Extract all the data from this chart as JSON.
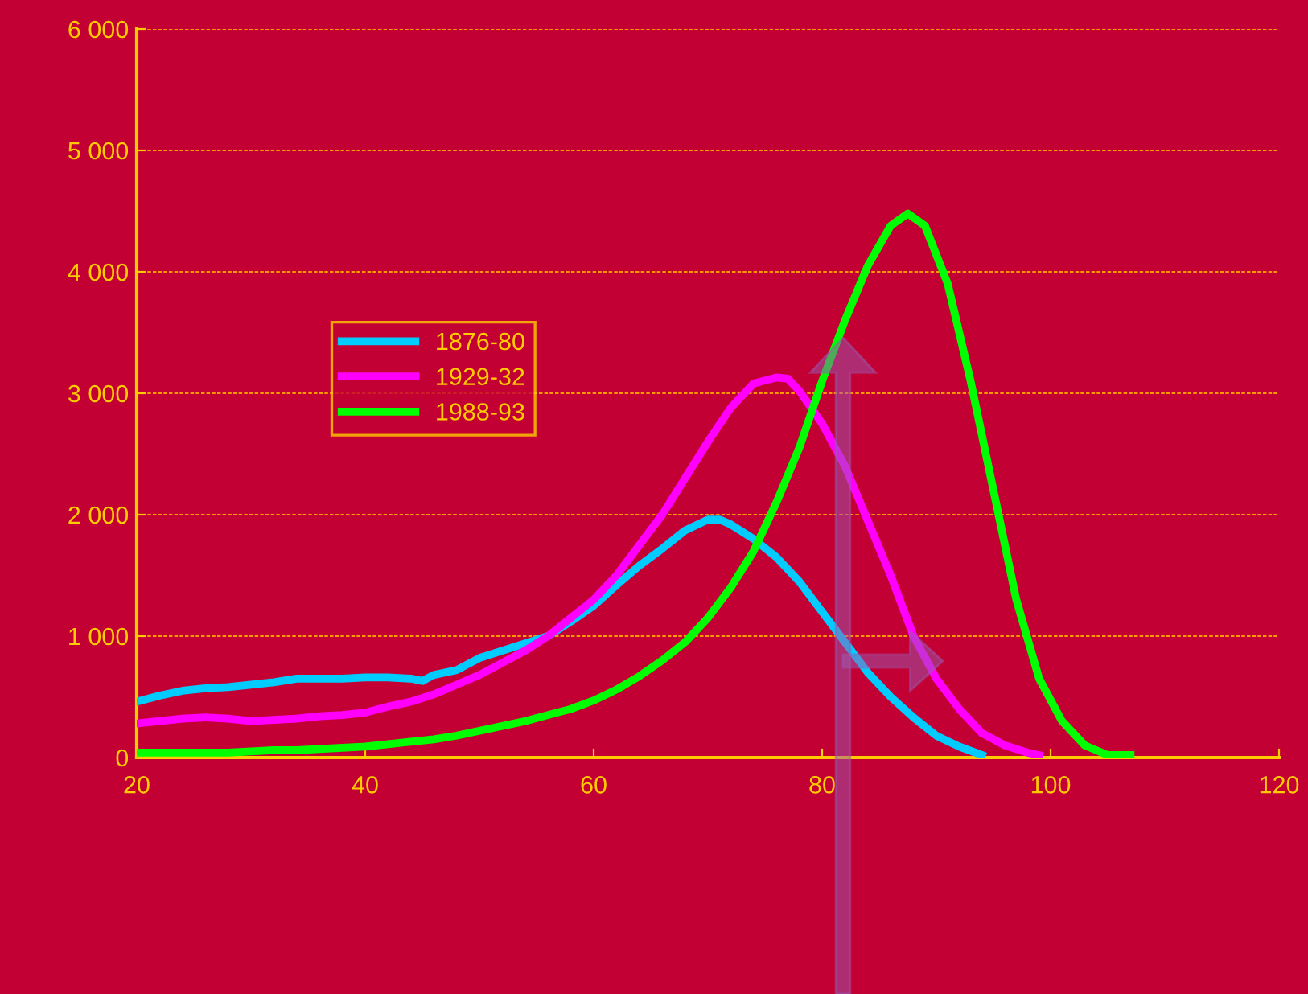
{
  "chart_data": {
    "type": "line",
    "xlim": [
      20,
      120
    ],
    "xticks": [
      20,
      40,
      60,
      80,
      100,
      120
    ],
    "ylim": [
      0,
      6000
    ],
    "yticks": [
      {
        "value": 0,
        "label": "0"
      },
      {
        "value": 1000,
        "label": "1 000"
      },
      {
        "value": 2000,
        "label": "2 000"
      },
      {
        "value": 3000,
        "label": "3 000"
      },
      {
        "value": 4000,
        "label": "4 000"
      },
      {
        "value": 5000,
        "label": "5 000"
      },
      {
        "value": 6000,
        "label": "6 000"
      }
    ],
    "grid": "y",
    "legend": "left",
    "marker": "none",
    "line_style": "solid",
    "series": [
      {
        "name": "1876-80",
        "color": "#00ccff",
        "x": [
          20,
          22,
          24,
          26,
          28,
          30,
          32,
          34,
          36,
          38,
          40,
          42,
          44,
          45,
          46,
          48,
          50,
          52,
          54,
          56,
          58,
          60,
          62,
          64,
          66,
          68,
          70,
          71,
          72,
          74,
          76,
          78,
          80,
          82,
          84,
          86,
          88,
          90,
          92,
          94
        ],
        "values": [
          460,
          510,
          550,
          570,
          580,
          600,
          620,
          650,
          650,
          650,
          660,
          660,
          650,
          630,
          680,
          720,
          820,
          880,
          940,
          1000,
          1120,
          1250,
          1420,
          1580,
          1720,
          1870,
          1960,
          1960,
          1920,
          1800,
          1650,
          1450,
          1200,
          950,
          700,
          500,
          330,
          180,
          90,
          20
        ]
      },
      {
        "name": "1929-32",
        "color": "#ff00ff",
        "x": [
          20,
          22,
          24,
          26,
          28,
          30,
          32,
          34,
          36,
          38,
          40,
          42,
          44,
          46,
          48,
          50,
          52,
          54,
          56,
          58,
          60,
          62,
          64,
          66,
          68,
          70,
          72,
          74,
          76,
          77,
          78,
          80,
          82,
          84,
          86,
          88,
          90,
          92,
          94,
          96,
          98,
          99
        ],
        "values": [
          280,
          300,
          320,
          330,
          320,
          300,
          310,
          320,
          340,
          350,
          370,
          420,
          460,
          520,
          600,
          680,
          780,
          880,
          1000,
          1150,
          1300,
          1500,
          1750,
          2000,
          2300,
          2600,
          2880,
          3080,
          3130,
          3120,
          3020,
          2750,
          2400,
          1950,
          1500,
          1000,
          650,
          400,
          200,
          100,
          40,
          20
        ]
      },
      {
        "name": "1988-93",
        "color": "#00ff00",
        "x": [
          20,
          22,
          24,
          26,
          28,
          30,
          32,
          34,
          36,
          38,
          40,
          42,
          44,
          46,
          48,
          50,
          52,
          54,
          56,
          58,
          60,
          62,
          64,
          66,
          68,
          70,
          72,
          74,
          76,
          78,
          80,
          82,
          84,
          86,
          87.5,
          89,
          91,
          93,
          95,
          97,
          99,
          101,
          103,
          105,
          107
        ],
        "values": [
          40,
          40,
          40,
          40,
          40,
          50,
          60,
          60,
          70,
          80,
          90,
          110,
          130,
          150,
          180,
          220,
          260,
          300,
          350,
          400,
          470,
          560,
          670,
          800,
          950,
          1150,
          1400,
          1700,
          2100,
          2550,
          3100,
          3600,
          4050,
          4380,
          4480,
          4380,
          3900,
          3100,
          2200,
          1300,
          650,
          300,
          100,
          20,
          20
        ]
      }
    ]
  }
}
